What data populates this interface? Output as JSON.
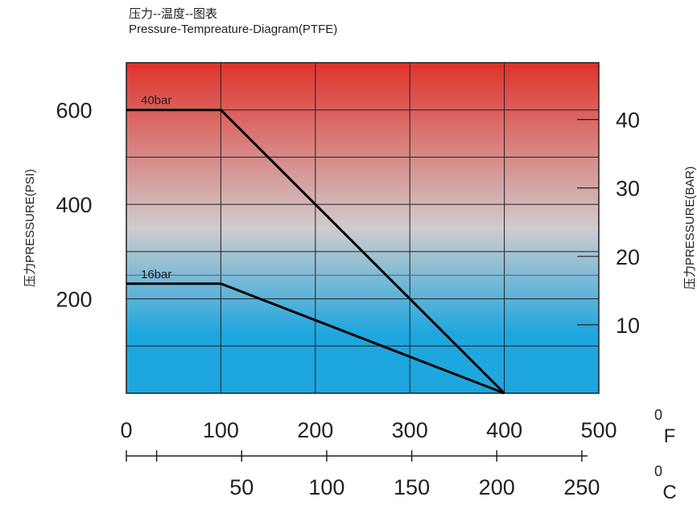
{
  "chart_data": {
    "type": "line",
    "title": "压力--温度--图表",
    "subtitle": "Pressure-Tempreature-Diagram(PTFE)",
    "x_axis_f": {
      "unit_sup": "0",
      "unit": "F",
      "range": [
        0,
        500
      ],
      "ticks": [
        0,
        100,
        200,
        300,
        400,
        500
      ],
      "tick_labels": [
        "0",
        "100",
        "200",
        "300",
        "400",
        "500"
      ]
    },
    "x_axis_c": {
      "unit_sup": "0",
      "unit": "C",
      "range": [
        -17.8,
        260
      ],
      "major_ticks": [
        -17.8,
        0,
        50,
        100,
        150,
        200,
        250
      ],
      "labeled_ticks": [
        50,
        100,
        150,
        200,
        250
      ],
      "tick_labels": [
        "50",
        "100",
        "150",
        "200",
        "250"
      ]
    },
    "y_axis_psi": {
      "label": "压力PRESSURE(PSI)",
      "range": [
        0,
        700
      ],
      "ticks": [
        200,
        400,
        600
      ],
      "tick_labels": [
        "200",
        "400",
        "600"
      ]
    },
    "y_axis_bar": {
      "label": "压力PRESSURE(BAR)",
      "range": [
        0,
        48.3
      ],
      "ticks": [
        10,
        20,
        30,
        40
      ],
      "tick_labels": [
        "10",
        "20",
        "30",
        "40"
      ]
    },
    "grid": true,
    "series": [
      {
        "name": "40bar",
        "x": [
          0,
          100,
          400
        ],
        "y": [
          600,
          600,
          0
        ]
      },
      {
        "name": "16bar",
        "x": [
          0,
          100,
          400
        ],
        "y": [
          232,
          232,
          0
        ]
      }
    ],
    "colors": {
      "top": "#e0322b",
      "middle": "#d0cccd",
      "bottom": "#1ea6de",
      "line": "#000000",
      "grid": "#231f20"
    }
  }
}
